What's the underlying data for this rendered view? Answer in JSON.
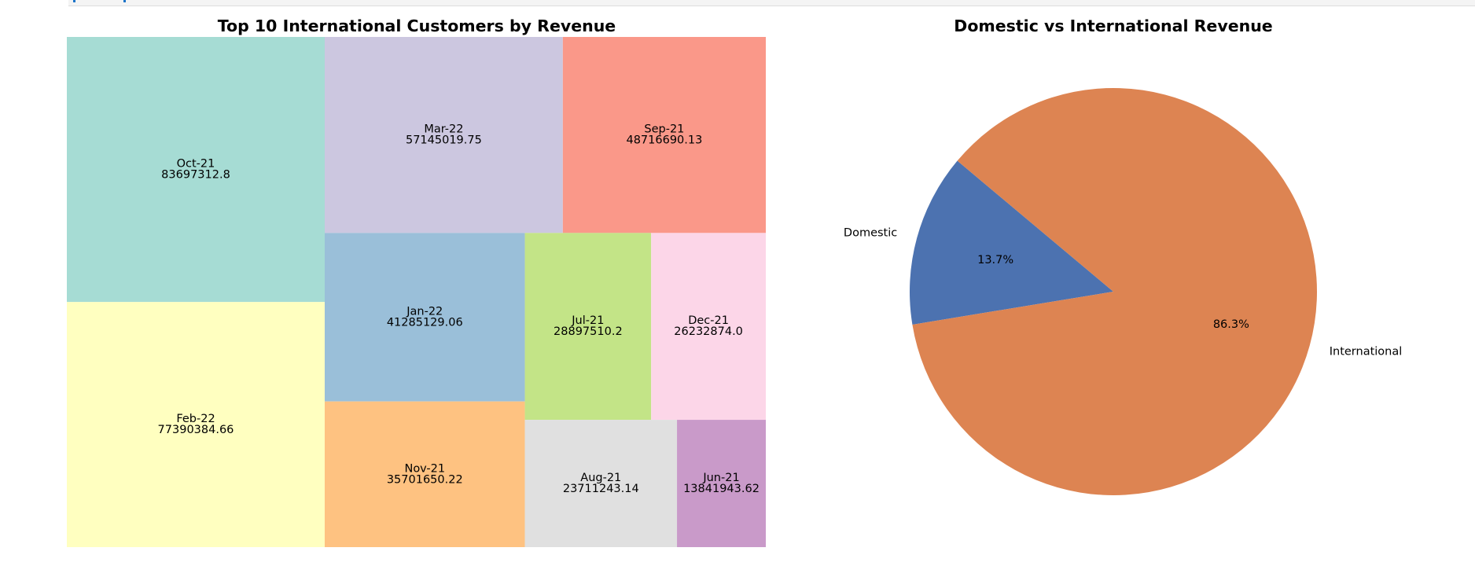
{
  "chart_data": [
    {
      "type": "treemap",
      "title": "Top 10 International Customers by Revenue",
      "items": [
        {
          "label": "Oct-21",
          "value_text": "83697312.8",
          "value": 83697312.8,
          "color": "#a6dcd4"
        },
        {
          "label": "Feb-22",
          "value_text": "77390384.66",
          "value": 77390384.66,
          "color": "#ffffc0"
        },
        {
          "label": "Mar-22",
          "value_text": "57145019.75",
          "value": 57145019.75,
          "color": "#ccc7e0"
        },
        {
          "label": "Sep-21",
          "value_text": "48716690.13",
          "value": 48716690.13,
          "color": "#fa9889"
        },
        {
          "label": "Jan-22",
          "value_text": "41285129.06",
          "value": 41285129.06,
          "color": "#9abfd9"
        },
        {
          "label": "Nov-21",
          "value_text": "35701650.22",
          "value": 35701650.22,
          "color": "#fec281"
        },
        {
          "label": "Jul-21",
          "value_text": "28897510.2",
          "value": 28897510.2,
          "color": "#c3e487"
        },
        {
          "label": "Dec-21",
          "value_text": "26232874.0",
          "value": 26232874.0,
          "color": "#fcd6e8"
        },
        {
          "label": "Aug-21",
          "value_text": "23711243.14",
          "value": 23711243.14,
          "color": "#e0e0e0"
        },
        {
          "label": "Jun-21",
          "value_text": "13841943.62",
          "value": 13841943.62,
          "color": "#c99ac9"
        }
      ]
    },
    {
      "type": "pie",
      "title": "Domestic vs International Revenue",
      "slices": [
        {
          "label": "Domestic",
          "value": 13.7,
          "pct_text": "13.7%",
          "color": "#4c72b0"
        },
        {
          "label": "International",
          "value": 86.3,
          "pct_text": "86.3%",
          "color": "#dd8452"
        }
      ]
    }
  ]
}
